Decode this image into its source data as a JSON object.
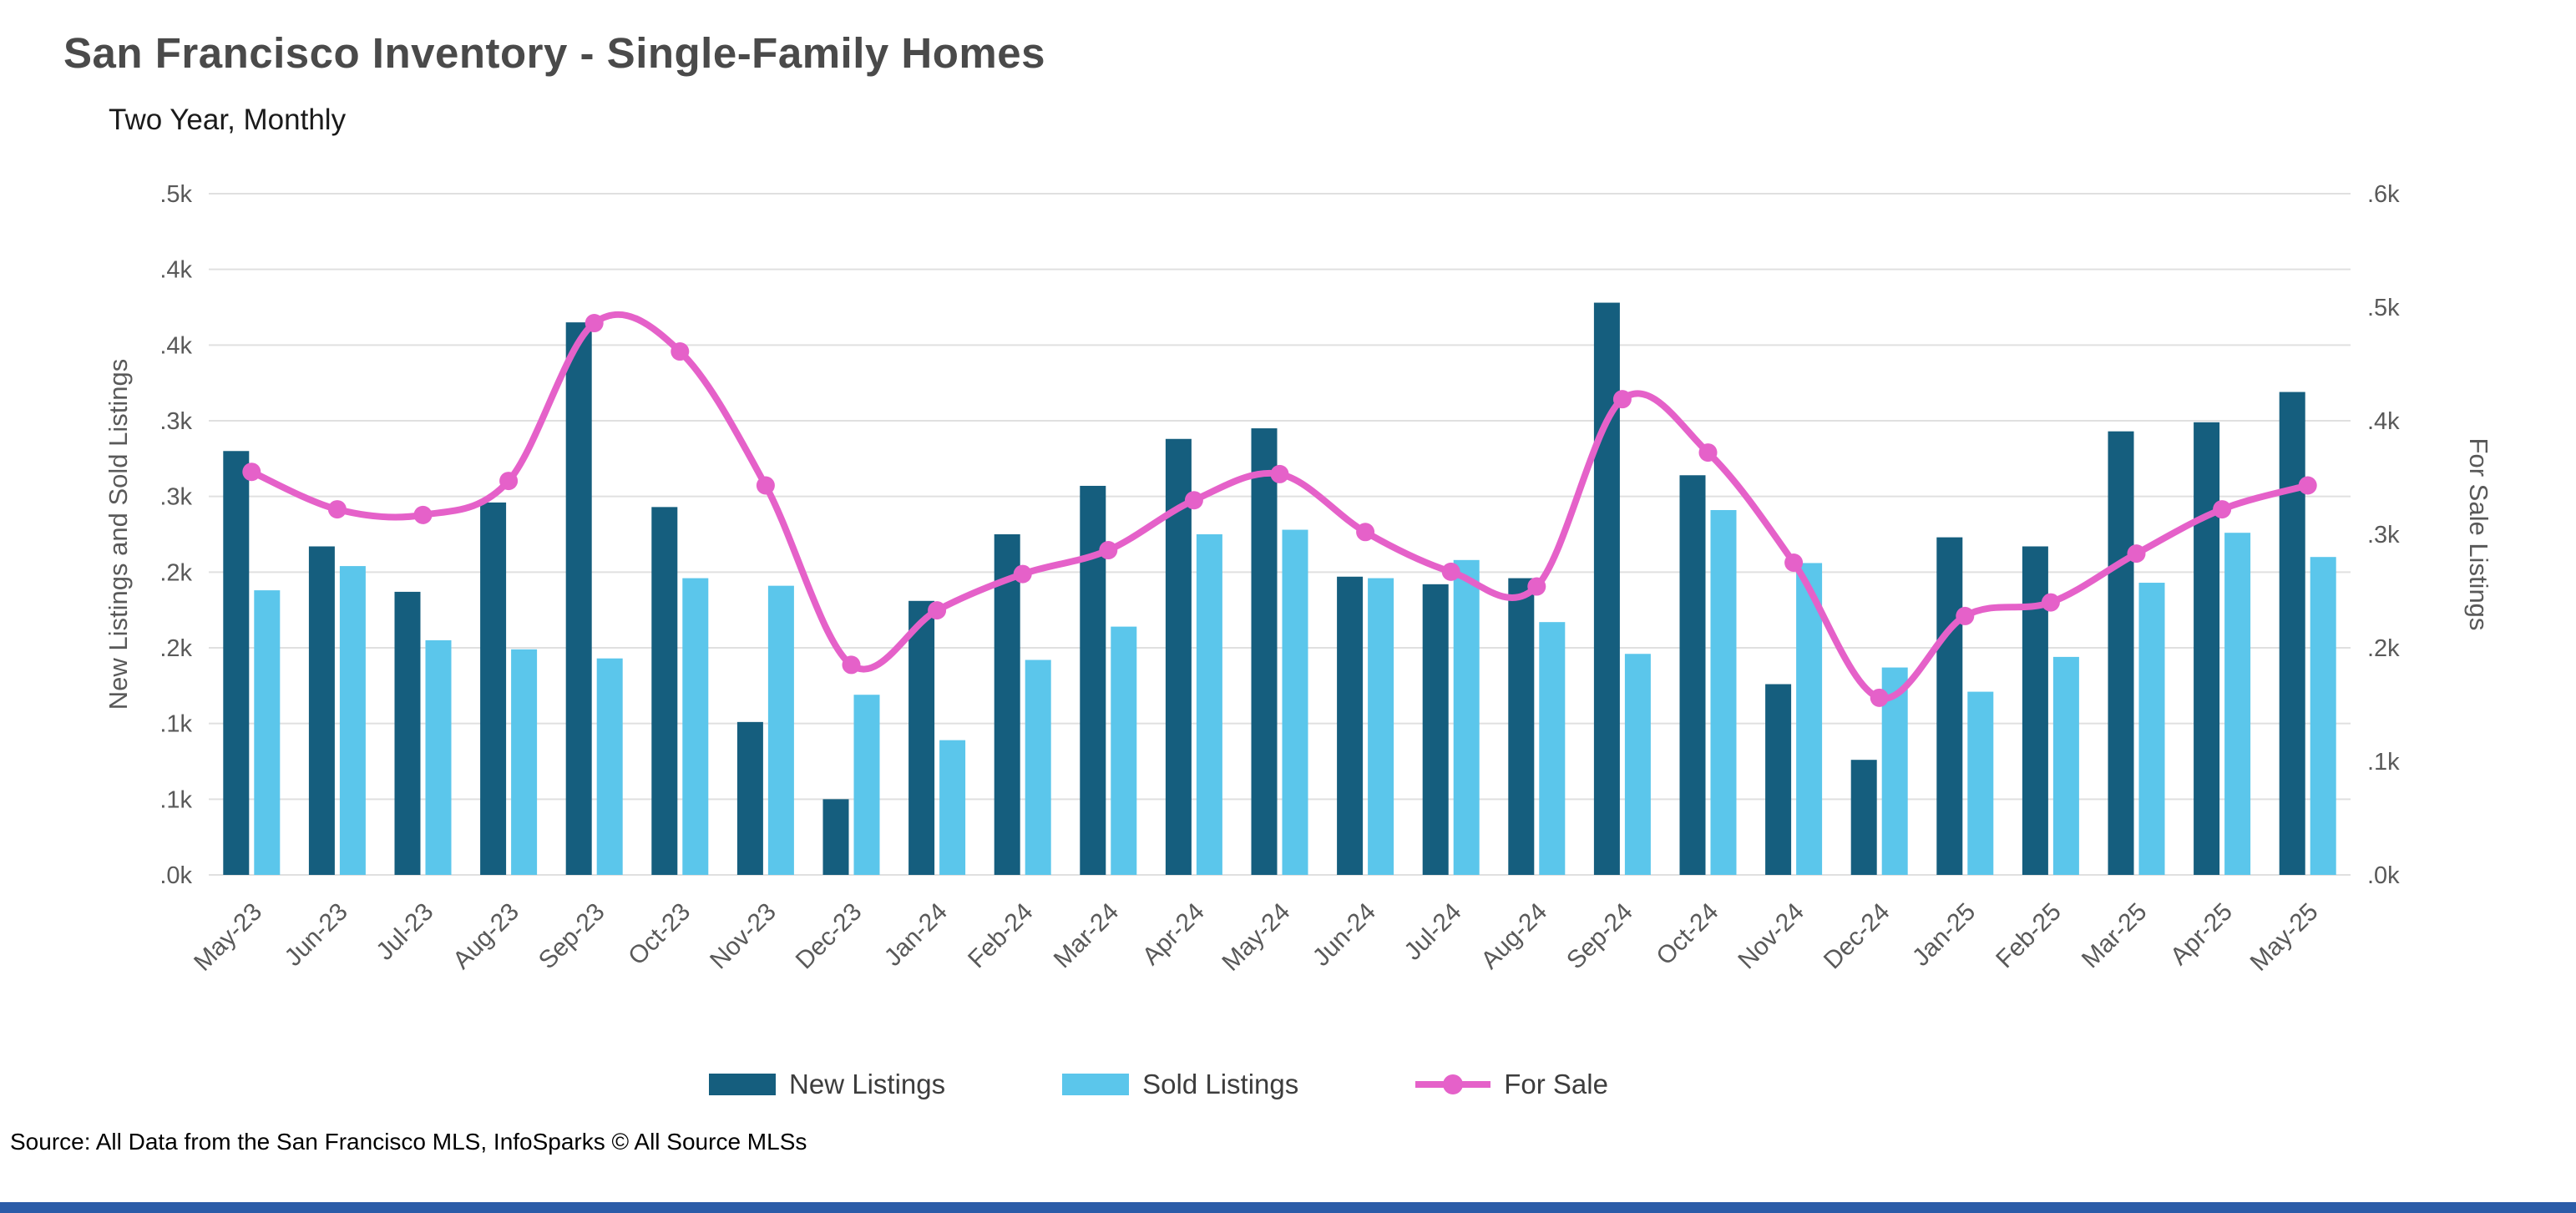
{
  "header": {
    "title": "San Francisco Inventory - Single-Family Homes",
    "subtitle": "Two Year, Monthly"
  },
  "footer": {
    "source": "Source: All Data from the San Francisco MLS, InfoSparks © All Source MLSs"
  },
  "colors": {
    "new_listings": "#155E7E",
    "sold_listings": "#5BC6EB",
    "for_sale": "#E561C9",
    "title_text": "#4A4A4A",
    "axis_text": "#595959",
    "gridline": "#E0E0E0",
    "bottom_bar": "#2B5CA8"
  },
  "chart_data": {
    "type": "bar+line",
    "title": "San Francisco Inventory - Single-Family Homes",
    "subtitle": "Two Year, Monthly",
    "grid": true,
    "legend_position": "bottom",
    "categories": [
      "May-23",
      "Jun-23",
      "Jul-23",
      "Aug-23",
      "Sep-23",
      "Oct-23",
      "Nov-23",
      "Dec-23",
      "Jan-24",
      "Feb-24",
      "Mar-24",
      "Apr-24",
      "May-24",
      "Jun-24",
      "Jul-24",
      "Aug-24",
      "Sep-24",
      "Oct-24",
      "Nov-24",
      "Dec-24",
      "Jan-25",
      "Feb-25",
      "Mar-25",
      "Apr-25",
      "May-25"
    ],
    "series": [
      {
        "name": "New Listings",
        "type": "bar",
        "axis": "left",
        "color": "#155E7E",
        "values": [
          280,
          217,
          187,
          246,
          365,
          243,
          101,
          50,
          181,
          225,
          257,
          288,
          295,
          197,
          192,
          196,
          378,
          264,
          126,
          76,
          223,
          217,
          293,
          299,
          319
        ]
      },
      {
        "name": "Sold Listings",
        "type": "bar",
        "axis": "left",
        "color": "#5BC6EB",
        "values": [
          188,
          204,
          155,
          149,
          143,
          196,
          191,
          119,
          89,
          142,
          164,
          225,
          228,
          196,
          208,
          167,
          146,
          241,
          206,
          137,
          121,
          144,
          193,
          226,
          210
        ]
      },
      {
        "name": "For Sale",
        "type": "line",
        "axis": "right",
        "color": "#E561C9",
        "values": [
          355,
          322,
          317,
          347,
          486,
          461,
          343,
          185,
          233,
          265,
          286,
          330,
          353,
          302,
          267,
          254,
          419,
          372,
          275,
          156,
          228,
          240,
          283,
          322,
          343
        ]
      }
    ],
    "left_axis": {
      "title": "New Listings and Sold Listings",
      "min": 0,
      "max": 450,
      "tick_labels": [
        ".0k",
        ".1k",
        ".1k",
        ".2k",
        ".2k",
        ".3k",
        ".3k",
        ".4k",
        ".4k",
        ".5k"
      ]
    },
    "right_axis": {
      "title": "For Sale Listings",
      "min": 0,
      "max": 600,
      "tick_labels": [
        ".0k",
        ".1k",
        ".2k",
        ".3k",
        ".4k",
        ".5k",
        ".6k"
      ]
    }
  }
}
